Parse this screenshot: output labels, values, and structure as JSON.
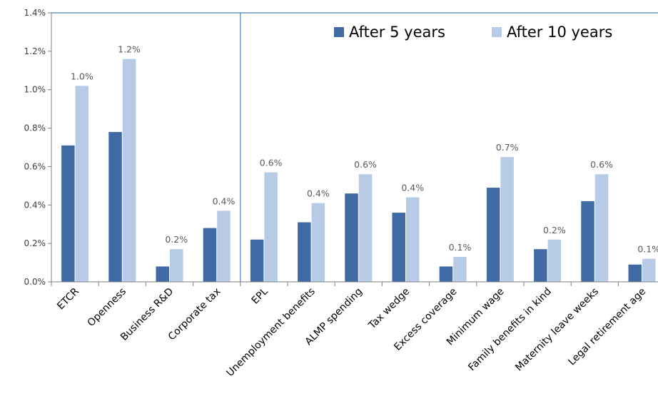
{
  "chart_data": {
    "type": "bar",
    "title": "",
    "xlabel": "",
    "ylabel": "",
    "ylim": [
      0,
      0.014
    ],
    "yticks": [
      "0.0%",
      "0.2%",
      "0.4%",
      "0.6%",
      "0.8%",
      "1.0%",
      "1.2%",
      "1.4%"
    ],
    "legend_position": "top-right",
    "categories": [
      "ETCR",
      "Openness",
      "Business R&D",
      "Corporate tax",
      "EPL",
      "Unemployment benefits",
      "ALMP spending",
      "Tax wedge",
      "Excess coverage",
      "Minimum wage",
      "Family benefits in kind",
      "Maternity leave weeks",
      "Legal retirement age"
    ],
    "series": [
      {
        "name": "After 5 years",
        "color": "#3f6aa3",
        "values": [
          0.0071,
          0.0078,
          0.0008,
          0.0028,
          0.0022,
          0.0031,
          0.0046,
          0.0036,
          0.0008,
          0.0049,
          0.0017,
          0.0042,
          0.0009
        ]
      },
      {
        "name": "After 10 years",
        "color": "#b7cbe7",
        "values": [
          0.0102,
          0.0116,
          0.0017,
          0.0037,
          0.0057,
          0.0041,
          0.0056,
          0.0044,
          0.0013,
          0.0065,
          0.0022,
          0.0056,
          0.0012
        ]
      }
    ],
    "data_labels": [
      "1.0%",
      "1.2%",
      "0.2%",
      "0.4%",
      "0.6%",
      "0.4%",
      "0.6%",
      "0.4%",
      "0.1%",
      "0.7%",
      "0.2%",
      "0.6%",
      "0.1%"
    ],
    "separator_after_category": "Corporate tax"
  }
}
